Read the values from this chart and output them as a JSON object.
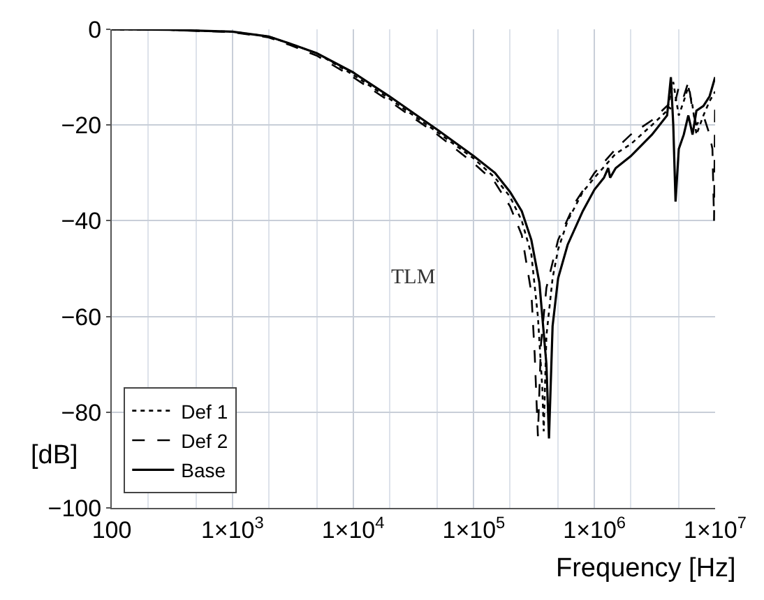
{
  "chart_data": {
    "type": "line",
    "xlabel": "Frequency [Hz]",
    "ylabel": "[dB]",
    "log": "x",
    "xlim": [
      100,
      10000000
    ],
    "ylim": [
      -100,
      0
    ],
    "xticks": [
      100,
      {
        "value": 1000,
        "label": "1×10$^{3}$"
      },
      {
        "value": 10000,
        "label": "1×10$^{4}$"
      },
      {
        "value": 100000,
        "label": "1×10$^{5}$"
      },
      {
        "value": 1000000,
        "label": "1×10$^{6}$"
      },
      {
        "value": 10000000,
        "label": "1×10$^{7}$"
      }
    ],
    "yticks": [
      {
        "value": 0,
        "label": "0"
      },
      {
        "value": -20,
        "label": "−20"
      },
      {
        "value": -40,
        "label": "−40"
      },
      {
        "value": -60,
        "label": "−60"
      },
      {
        "value": -80,
        "label": "−80"
      },
      {
        "value": -100,
        "label": "−100"
      }
    ],
    "grid": true,
    "legend": "bottom left",
    "marker": "none",
    "annotations": [
      "TLM"
    ],
    "series": [
      {
        "name": "Def 1",
        "color": "#000000",
        "line_style": "dotted",
        "x": [
          100,
          300,
          1000,
          2000,
          3000,
          5000,
          10000,
          20000,
          50000,
          100000,
          150000,
          200000,
          250000,
          300000,
          340000,
          370000,
          380000,
          400000,
          450000,
          500000,
          600000,
          800000,
          1000000,
          1500000,
          2000000,
          3000000,
          4000000,
          4500000,
          4700000,
          5000000,
          5500000,
          6000000,
          6500000,
          7000000,
          8000000,
          9000000,
          10000000
        ],
        "values": [
          0,
          -0.1,
          -0.5,
          -1.5,
          -3,
          -5,
          -9.5,
          -14.5,
          -21.5,
          -27,
          -31,
          -35,
          -40,
          -47,
          -60,
          -75,
          -84,
          -64,
          -52,
          -46,
          -40,
          -34,
          -31,
          -26,
          -24,
          -20,
          -17,
          -11,
          -14,
          -18,
          -15,
          -12,
          -16,
          -22,
          -18,
          -15,
          -13
        ]
      },
      {
        "name": "Def 2",
        "color": "#000000",
        "line_style": "dashed",
        "x": [
          100,
          300,
          1000,
          2000,
          3000,
          5000,
          10000,
          20000,
          50000,
          100000,
          150000,
          200000,
          250000,
          300000,
          320000,
          340000,
          360000,
          400000,
          500000,
          700000,
          1000000,
          1500000,
          2000000,
          3000000,
          4000000,
          4500000,
          5000000,
          5500000,
          6000000,
          6500000,
          7000000,
          8000000,
          9000000,
          9500000,
          9800000,
          10000000
        ],
        "values": [
          0,
          -0.1,
          -0.6,
          -1.7,
          -3.3,
          -5.5,
          -10,
          -15,
          -22,
          -28,
          -32,
          -37,
          -43,
          -55,
          -68,
          -85,
          -66,
          -54,
          -44,
          -36,
          -30,
          -25,
          -22,
          -19,
          -16,
          -17,
          -12,
          -14,
          -11,
          -17,
          -20,
          -18,
          -22,
          -25,
          -40,
          -15
        ]
      },
      {
        "name": "Base",
        "color": "#000000",
        "line_style": "solid",
        "x": [
          100,
          300,
          1000,
          2000,
          3000,
          5000,
          10000,
          20000,
          50000,
          100000,
          150000,
          200000,
          250000,
          300000,
          350000,
          400000,
          420000,
          450000,
          500000,
          600000,
          800000,
          1000000,
          1200000,
          1300000,
          1350000,
          1500000,
          2000000,
          3000000,
          4000000,
          4300000,
          4500000,
          4700000,
          5000000,
          5500000,
          6000000,
          6500000,
          7000000,
          8000000,
          9000000,
          10000000
        ],
        "values": [
          0,
          -0.1,
          -0.5,
          -1.5,
          -3,
          -5,
          -9,
          -14,
          -21,
          -26.5,
          -30,
          -34,
          -38,
          -44,
          -53,
          -70,
          -85.5,
          -62,
          -52,
          -45,
          -38,
          -33.5,
          -31,
          -29,
          -31,
          -29,
          -26.5,
          -22,
          -18,
          -10,
          -20,
          -36,
          -25,
          -22,
          -18,
          -22,
          -17,
          -16,
          -14,
          -10
        ]
      }
    ]
  }
}
